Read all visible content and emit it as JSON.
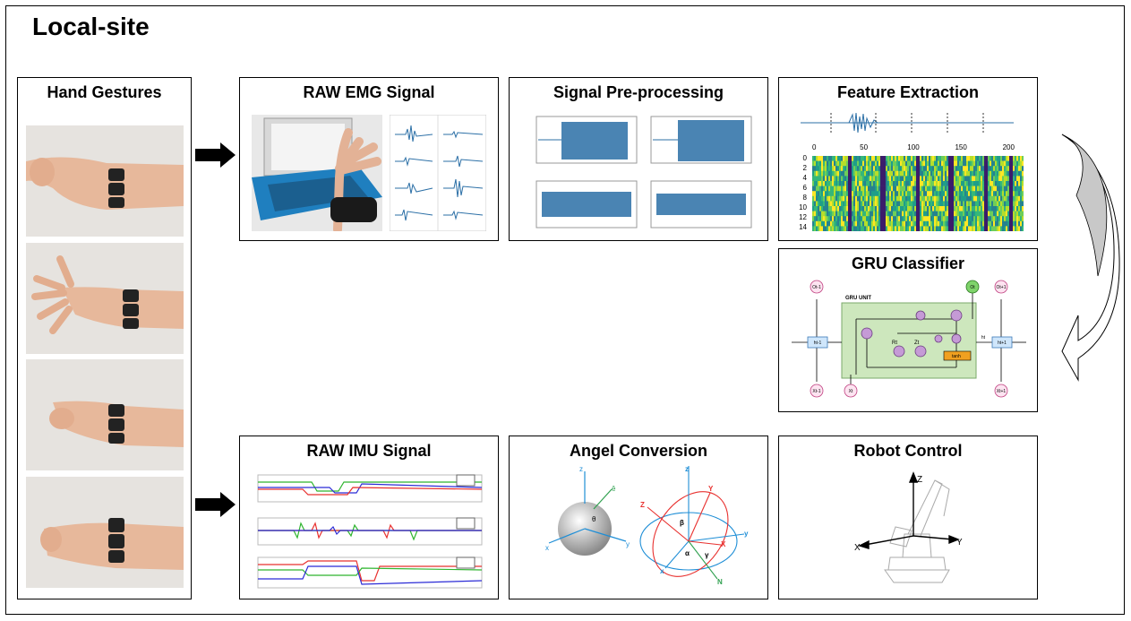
{
  "title": "Local-site",
  "boxes": {
    "hand_gestures": "Hand Gestures",
    "raw_emg": "RAW EMG Signal",
    "preprocessing": "Signal Pre-processing",
    "feature_extraction": "Feature Extraction",
    "gru_classifier": "GRU Classifier",
    "raw_imu": "RAW IMU Signal",
    "angle_conversion": "Angel Conversion",
    "robot_control": "Robot Control"
  },
  "gru": {
    "unit_label": "GRU UNIT",
    "o_prev": "Ot-1",
    "o_t": "Ot",
    "o_next": "Ot+1",
    "h_prev": "ht-1",
    "h_t": "ht",
    "h_next": "ht+1",
    "x_prev": "Xt-1",
    "x_t": "Xt",
    "x_next": "Xt+1",
    "r": "Rt",
    "z": "Zt",
    "tanh": "tanh"
  },
  "heatmap": {
    "x_ticks": [
      "0",
      "50",
      "100",
      "150",
      "200"
    ],
    "y_ticks": [
      "0",
      "2",
      "4",
      "6",
      "8",
      "10",
      "12",
      "14"
    ]
  },
  "robot_axes": {
    "x": "X",
    "y": "Y",
    "z": "Z"
  },
  "angle_axes": {
    "z": "z",
    "x": "x",
    "y": "y",
    "theta": "θ",
    "e": "ê",
    "Z": "Z",
    "Y": "Y",
    "X": "X",
    "N": "N",
    "alpha": "α",
    "beta": "β",
    "gamma": "γ"
  },
  "colors": {
    "emg_signal": "#2b6fa6",
    "imu_red": "#e8312f",
    "imu_green": "#2fb52f",
    "imu_blue": "#2b2bd6",
    "gru_unit_fill": "#cde7bd",
    "gate_fill": "#c59ad6",
    "tanh_fill": "#f0a020",
    "curved_arrow_fill": "#c8c8c8"
  }
}
